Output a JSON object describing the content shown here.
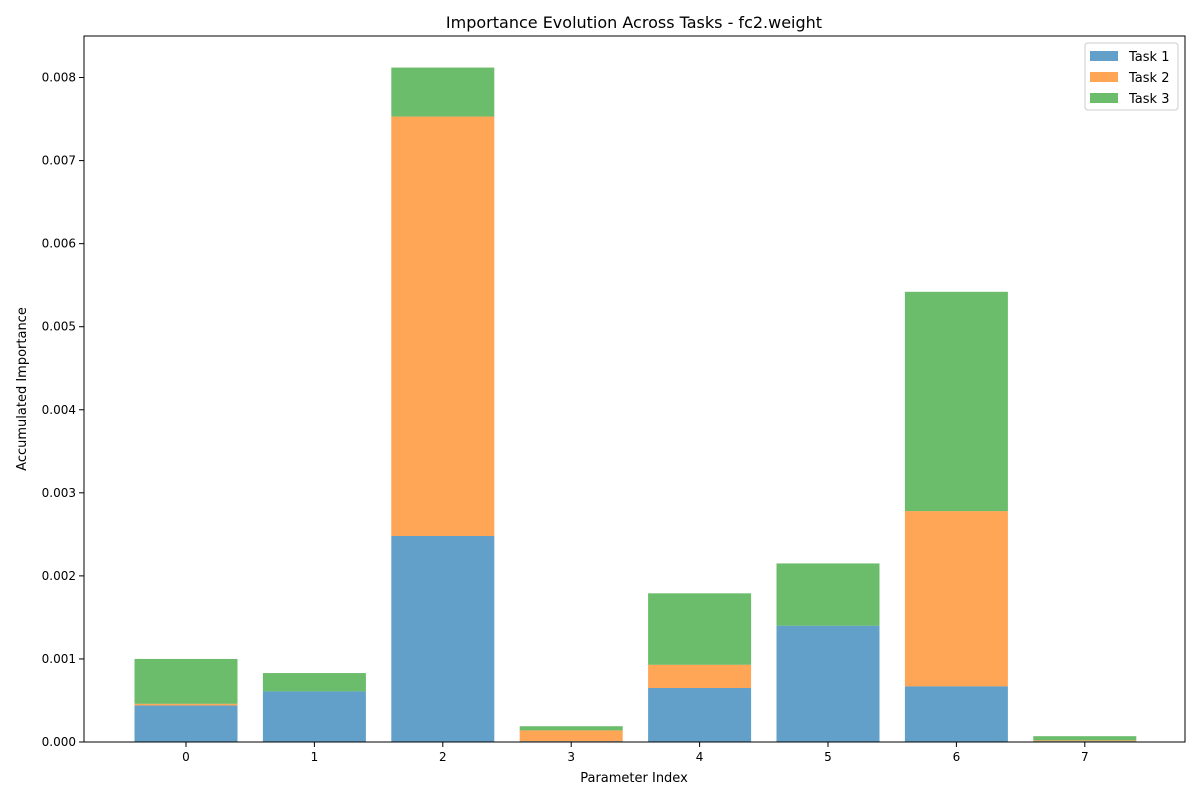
{
  "chart_data": {
    "type": "bar",
    "stacked": true,
    "title": "Importance Evolution Across Tasks - fc2.weight",
    "xlabel": "Parameter Index",
    "ylabel": "Accumulated Importance",
    "categories": [
      "0",
      "1",
      "2",
      "3",
      "4",
      "5",
      "6",
      "7"
    ],
    "ylim": [
      0,
      0.0085
    ],
    "yticks": [
      "0.000",
      "0.001",
      "0.002",
      "0.003",
      "0.004",
      "0.005",
      "0.006",
      "0.007",
      "0.008"
    ],
    "grid": false,
    "legend_position": "top-right",
    "series": [
      {
        "name": "Task 1",
        "color": "#1f77b4",
        "values": [
          0.00044,
          0.00061,
          0.00248,
          1e-05,
          0.00065,
          0.0014,
          0.00067,
          1e-05
        ]
      },
      {
        "name": "Task 2",
        "color": "#ff7f0e",
        "values": [
          2e-05,
          0.0,
          0.00505,
          0.00013,
          0.00028,
          0.0,
          0.00211,
          1e-05
        ]
      },
      {
        "name": "Task 3",
        "color": "#2ca02c",
        "values": [
          0.00054,
          0.00022,
          0.00059,
          5e-05,
          0.00086,
          0.00075,
          0.00264,
          5e-05
        ]
      }
    ]
  }
}
